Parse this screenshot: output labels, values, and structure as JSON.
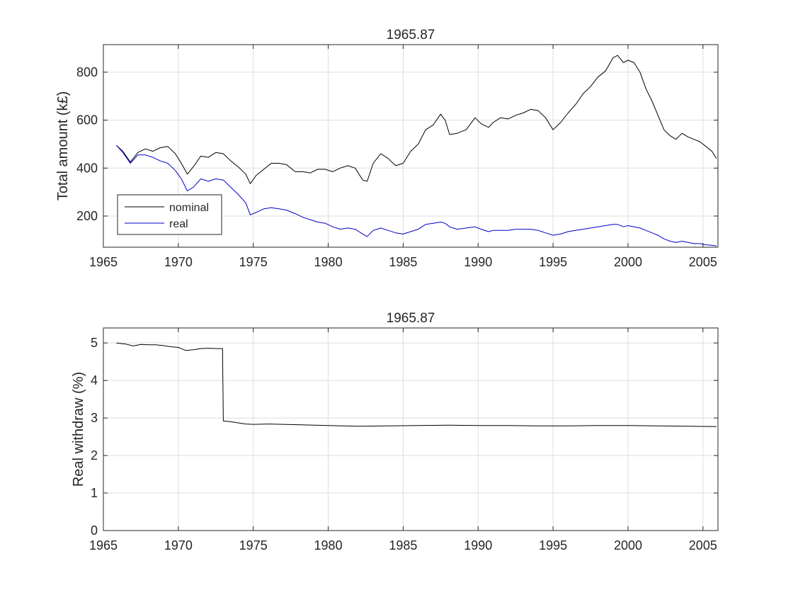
{
  "chart_data": [
    {
      "type": "line",
      "title": "1965.87",
      "xlabel": "",
      "ylabel": "Total amount (k£)",
      "xlim": [
        1965,
        2006
      ],
      "ylim": [
        70,
        915
      ],
      "xticks": [
        1965,
        1970,
        1975,
        1980,
        1985,
        1990,
        1995,
        2000,
        2005
      ],
      "yticks": [
        200,
        400,
        600,
        800
      ],
      "grid": true,
      "legend": {
        "placement": "bottom-left",
        "entries": [
          "nominal",
          "real"
        ]
      },
      "series": [
        {
          "name": "nominal",
          "color": "#000000",
          "x": [
            1965.87,
            1966.3,
            1966.8,
            1967.3,
            1967.8,
            1968.3,
            1968.8,
            1969.3,
            1969.8,
            1970.2,
            1970.6,
            1971.0,
            1971.5,
            1972.0,
            1972.5,
            1973.0,
            1973.5,
            1974.0,
            1974.5,
            1974.8,
            1975.2,
            1975.7,
            1976.2,
            1976.7,
            1977.2,
            1977.8,
            1978.3,
            1978.8,
            1979.3,
            1979.8,
            1980.3,
            1980.8,
            1981.3,
            1981.8,
            1982.3,
            1982.6,
            1983.0,
            1983.5,
            1984.0,
            1984.5,
            1985.0,
            1985.5,
            1986.0,
            1986.5,
            1987.0,
            1987.5,
            1987.8,
            1988.1,
            1988.6,
            1989.2,
            1989.8,
            1990.2,
            1990.7,
            1991.0,
            1991.5,
            1992.0,
            1992.5,
            1993.0,
            1993.5,
            1994.0,
            1994.5,
            1995.0,
            1995.5,
            1996.0,
            1996.5,
            1997.0,
            1997.5,
            1998.0,
            1998.5,
            1999.0,
            1999.3,
            1999.7,
            2000.0,
            2000.4,
            2000.8,
            2001.2,
            2001.6,
            2002.0,
            2002.4,
            2002.8,
            2003.2,
            2003.6,
            2004.0,
            2004.4,
            2004.8,
            2005.2,
            2005.6,
            2005.9
          ],
          "y": [
            495,
            470,
            425,
            465,
            480,
            470,
            485,
            490,
            460,
            420,
            375,
            405,
            450,
            445,
            465,
            460,
            430,
            405,
            375,
            335,
            370,
            395,
            420,
            420,
            415,
            385,
            385,
            380,
            395,
            395,
            385,
            400,
            410,
            400,
            350,
            345,
            420,
            460,
            440,
            410,
            420,
            470,
            500,
            560,
            580,
            625,
            600,
            540,
            545,
            560,
            610,
            585,
            570,
            590,
            610,
            605,
            620,
            630,
            645,
            640,
            610,
            560,
            590,
            630,
            665,
            710,
            740,
            780,
            805,
            860,
            870,
            840,
            850,
            840,
            800,
            730,
            680,
            620,
            560,
            535,
            520,
            545,
            530,
            520,
            510,
            490,
            470,
            440
          ]
        },
        {
          "name": "real",
          "color": "#0000c8",
          "x": [
            1965.87,
            1966.3,
            1966.8,
            1967.3,
            1967.8,
            1968.3,
            1968.8,
            1969.3,
            1969.8,
            1970.2,
            1970.6,
            1971.0,
            1971.5,
            1972.0,
            1972.5,
            1973.0,
            1973.5,
            1974.0,
            1974.5,
            1974.8,
            1975.2,
            1975.7,
            1976.2,
            1976.7,
            1977.2,
            1977.8,
            1978.3,
            1978.8,
            1979.3,
            1979.8,
            1980.3,
            1980.8,
            1981.3,
            1981.8,
            1982.3,
            1982.6,
            1983.0,
            1983.5,
            1984.0,
            1984.5,
            1985.0,
            1985.5,
            1986.0,
            1986.5,
            1987.0,
            1987.5,
            1987.8,
            1988.1,
            1988.6,
            1989.2,
            1989.8,
            1990.2,
            1990.7,
            1991.0,
            1991.5,
            1992.0,
            1992.5,
            1993.0,
            1993.5,
            1994.0,
            1994.5,
            1995.0,
            1995.5,
            1996.0,
            1996.5,
            1997.0,
            1997.5,
            1998.0,
            1998.5,
            1999.0,
            1999.3,
            1999.7,
            2000.0,
            2000.4,
            2000.8,
            2001.2,
            2001.6,
            2002.0,
            2002.4,
            2002.8,
            2003.2,
            2003.6,
            2004.0,
            2004.4,
            2004.8,
            2005.2,
            2005.6,
            2005.9
          ],
          "y": [
            495,
            465,
            420,
            455,
            455,
            445,
            430,
            420,
            390,
            355,
            305,
            320,
            355,
            345,
            355,
            350,
            320,
            290,
            255,
            205,
            215,
            230,
            235,
            230,
            225,
            210,
            195,
            185,
            175,
            170,
            155,
            145,
            150,
            145,
            125,
            115,
            140,
            150,
            140,
            130,
            125,
            135,
            145,
            165,
            170,
            175,
            170,
            155,
            145,
            150,
            155,
            145,
            135,
            140,
            140,
            140,
            145,
            145,
            145,
            140,
            130,
            120,
            125,
            135,
            140,
            145,
            150,
            155,
            160,
            165,
            165,
            155,
            160,
            155,
            150,
            140,
            130,
            120,
            105,
            95,
            90,
            95,
            90,
            85,
            85,
            80,
            78,
            75
          ]
        }
      ]
    },
    {
      "type": "line",
      "title": "1965.87",
      "xlabel": "",
      "ylabel": "Real withdraw (%)",
      "xlim": [
        1965,
        2006
      ],
      "ylim": [
        0,
        5.4
      ],
      "xticks": [
        1965,
        1970,
        1975,
        1980,
        1985,
        1990,
        1995,
        2000,
        2005
      ],
      "yticks": [
        0,
        1,
        2,
        3,
        4,
        5
      ],
      "grid": true,
      "series": [
        {
          "color": "#000000",
          "x": [
            1965.87,
            1966.5,
            1967.0,
            1967.5,
            1968.0,
            1968.5,
            1969.0,
            1969.5,
            1970.0,
            1970.5,
            1971.0,
            1971.5,
            1972.0,
            1972.5,
            1972.95,
            1973.0,
            1973.5,
            1974.0,
            1974.5,
            1975.0,
            1976.0,
            1977.0,
            1978.0,
            1980.0,
            1982.0,
            1984.0,
            1986.0,
            1988.0,
            1990.0,
            1992.0,
            1994.0,
            1996.0,
            1998.0,
            2000.0,
            2002.0,
            2004.0,
            2005.9
          ],
          "y": [
            5.0,
            4.97,
            4.92,
            4.96,
            4.95,
            4.95,
            4.93,
            4.9,
            4.88,
            4.8,
            4.82,
            4.85,
            4.86,
            4.85,
            4.85,
            2.92,
            2.9,
            2.87,
            2.84,
            2.83,
            2.84,
            2.83,
            2.82,
            2.8,
            2.78,
            2.79,
            2.8,
            2.81,
            2.8,
            2.8,
            2.79,
            2.79,
            2.8,
            2.8,
            2.79,
            2.78,
            2.77
          ]
        }
      ]
    }
  ]
}
